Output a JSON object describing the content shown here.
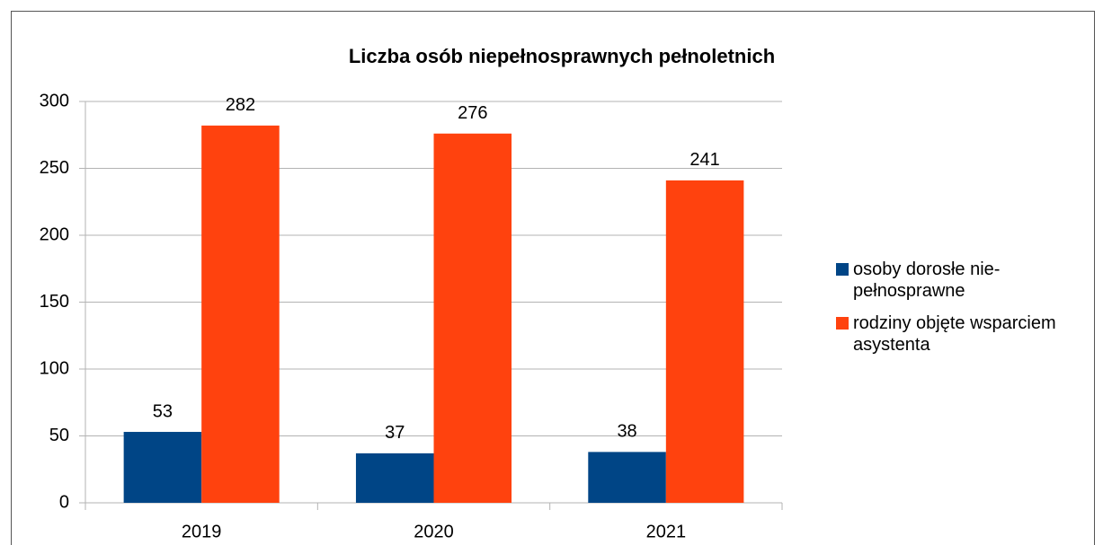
{
  "chart_data": {
    "type": "bar",
    "title": "Liczba osób niepełnosprawnych pełnoletnich",
    "categories": [
      "2019",
      "2020",
      "2021"
    ],
    "series": [
      {
        "name": "osoby dorosłe nie-pełnosprawne",
        "color": "#004586",
        "values": [
          53,
          37,
          38
        ]
      },
      {
        "name": "rodziny objęte wsparciem asystenta",
        "color": "#ff420e",
        "values": [
          282,
          276,
          241
        ]
      }
    ],
    "ylim": [
      0,
      300
    ],
    "yticks": [
      0,
      50,
      100,
      150,
      200,
      250,
      300
    ],
    "grid": true,
    "legend": "right"
  }
}
